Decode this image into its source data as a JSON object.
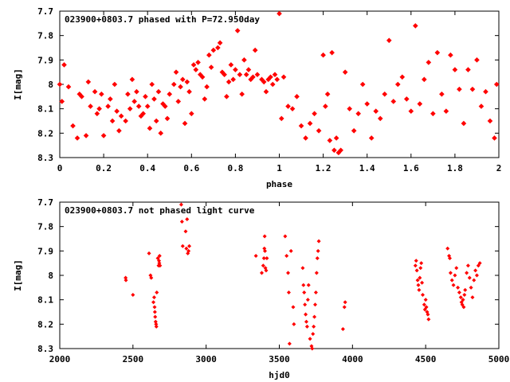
{
  "chart_data": [
    {
      "type": "scatter",
      "title": "023900+0803.7 phased with P=72.950day",
      "xlabel": "phase",
      "ylabel": "I[mag]",
      "xlim": [
        0,
        2
      ],
      "ylim": [
        7.7,
        8.3
      ],
      "y_inverted": true,
      "x_ticks": [
        "0",
        "0.2",
        "0.4",
        "0.6",
        "0.8",
        "1",
        "1.2",
        "1.4",
        "1.6",
        "1.8",
        "2"
      ],
      "y_ticks": [
        "7.7",
        "7.8",
        "7.9",
        "8",
        "8.1",
        "8.2",
        "8.3"
      ],
      "marker_color": "#ff0000",
      "series": [
        {
          "x": [
            0.0,
            0.01,
            0.02,
            0.04,
            0.06,
            0.08,
            0.09,
            0.1,
            0.12,
            0.13,
            0.14,
            0.16,
            0.17,
            0.18,
            0.19,
            0.2,
            0.22,
            0.23,
            0.24,
            0.25,
            0.26,
            0.27,
            0.28,
            0.3,
            0.31,
            0.32,
            0.33,
            0.34,
            0.35,
            0.36,
            0.37,
            0.38,
            0.39,
            0.4,
            0.41,
            0.42,
            0.43,
            0.44,
            0.45,
            0.46,
            0.47,
            0.48,
            0.49,
            0.5,
            0.52,
            0.53,
            0.54,
            0.55,
            0.56,
            0.57,
            0.58,
            0.59,
            0.6,
            0.61,
            0.62,
            0.63,
            0.64,
            0.65,
            0.66,
            0.67,
            0.68,
            0.69,
            0.7,
            0.72,
            0.73,
            0.74,
            0.75,
            0.76,
            0.77,
            0.78,
            0.79,
            0.8,
            0.81,
            0.82,
            0.83,
            0.84,
            0.85,
            0.86,
            0.87,
            0.88,
            0.89,
            0.9,
            0.92,
            0.93,
            0.94,
            0.95,
            0.96,
            0.97,
            0.98,
            0.99,
            1.0,
            1.01,
            1.02,
            1.04,
            1.06,
            1.08,
            1.1,
            1.12,
            1.14,
            1.16,
            1.18,
            1.2,
            1.21,
            1.22,
            1.23,
            1.24,
            1.25,
            1.26,
            1.27,
            1.28,
            1.3,
            1.32,
            1.34,
            1.36,
            1.38,
            1.4,
            1.42,
            1.44,
            1.46,
            1.48,
            1.5,
            1.52,
            1.54,
            1.56,
            1.58,
            1.6,
            1.62,
            1.64,
            1.66,
            1.68,
            1.7,
            1.72,
            1.74,
            1.76,
            1.78,
            1.8,
            1.82,
            1.84,
            1.86,
            1.88,
            1.9,
            1.92,
            1.94,
            1.96,
            1.98,
            1.99
          ],
          "y": [
            8.0,
            8.07,
            7.92,
            8.01,
            8.17,
            8.22,
            8.04,
            8.05,
            8.21,
            7.99,
            8.09,
            8.03,
            8.12,
            8.1,
            8.04,
            8.21,
            8.09,
            8.06,
            8.15,
            8.0,
            8.11,
            8.19,
            8.13,
            8.15,
            8.04,
            8.1,
            7.98,
            8.07,
            8.03,
            8.09,
            8.13,
            8.12,
            8.05,
            8.09,
            8.18,
            8.0,
            8.06,
            8.15,
            8.03,
            8.2,
            8.08,
            8.09,
            8.14,
            8.04,
            8.0,
            7.95,
            8.07,
            8.01,
            7.98,
            8.16,
            7.99,
            8.03,
            8.12,
            7.92,
            7.94,
            7.91,
            7.96,
            7.97,
            8.06,
            8.01,
            7.88,
            7.93,
            7.86,
            7.85,
            7.83,
            7.95,
            7.96,
            8.05,
            7.99,
            7.92,
            7.98,
            7.94,
            7.78,
            7.96,
            8.04,
            7.9,
            7.96,
            7.94,
            7.98,
            7.97,
            7.86,
            7.96,
            7.98,
            7.99,
            8.03,
            7.98,
            7.97,
            8.0,
            7.96,
            7.98,
            7.71,
            8.14,
            7.97,
            8.09,
            8.1,
            8.05,
            8.17,
            8.22,
            8.16,
            8.12,
            8.19,
            7.88,
            8.09,
            8.04,
            8.23,
            7.87,
            8.27,
            8.22,
            8.28,
            8.27,
            7.95,
            8.1,
            8.19,
            8.12,
            8.0,
            8.08,
            8.22,
            8.11,
            8.14,
            8.04,
            7.82,
            8.07,
            8.0,
            7.97,
            8.06,
            8.11,
            7.76,
            8.08,
            7.98,
            7.91,
            8.12,
            7.87,
            8.04,
            8.11,
            7.88,
            7.94,
            8.02,
            8.16,
            7.94,
            8.02,
            7.9,
            8.09,
            8.03,
            8.15,
            8.22,
            8.0
          ]
        }
      ]
    },
    {
      "type": "scatter",
      "title": "023900+0803.7 not phased light curve",
      "xlabel": "hjd0",
      "ylabel": "I[mag]",
      "xlim": [
        2000,
        5000
      ],
      "ylim": [
        7.7,
        8.3
      ],
      "y_inverted": true,
      "x_ticks": [
        "2000",
        "2500",
        "3000",
        "3500",
        "4000",
        "4500",
        "5000"
      ],
      "y_ticks": [
        "7.7",
        "7.8",
        "7.9",
        "8",
        "8.1",
        "8.2",
        "8.3"
      ],
      "marker_color": "#ff0000",
      "series": [
        {
          "x": [
            2450,
            2452,
            2500,
            2610,
            2620,
            2625,
            2640,
            2645,
            2648,
            2650,
            2652,
            2655,
            2658,
            2660,
            2663,
            2670,
            2675,
            2678,
            2680,
            2682,
            2685,
            2830,
            2835,
            2840,
            2860,
            2865,
            2870,
            2875,
            2880,
            2885,
            3340,
            3380,
            3390,
            3395,
            3398,
            3400,
            3402,
            3405,
            3410,
            3415,
            3540,
            3550,
            3560,
            3565,
            3570,
            3580,
            3595,
            3600,
            3660,
            3665,
            3670,
            3675,
            3680,
            3685,
            3690,
            3695,
            3700,
            3710,
            3720,
            3725,
            3730,
            3735,
            3740,
            3745,
            3750,
            3755,
            3760,
            3765,
            3770,
            3935,
            3945,
            3950,
            4430,
            4435,
            4440,
            4445,
            4450,
            4455,
            4460,
            4465,
            4470,
            4475,
            4480,
            4490,
            4495,
            4500,
            4505,
            4510,
            4515,
            4520,
            4650,
            4660,
            4665,
            4670,
            4680,
            4690,
            4700,
            4710,
            4720,
            4730,
            4740,
            4745,
            4750,
            4755,
            4760,
            4765,
            4770,
            4780,
            4790,
            4800,
            4810,
            4820,
            4830,
            4840,
            4850,
            4860,
            4870
          ],
          "y": [
            8.01,
            8.02,
            8.08,
            7.91,
            8.0,
            8.01,
            8.11,
            8.09,
            8.13,
            8.15,
            8.17,
            8.19,
            8.2,
            8.21,
            8.07,
            7.93,
            7.96,
            7.94,
            7.95,
            7.92,
            7.96,
            7.71,
            7.78,
            7.88,
            7.82,
            7.89,
            7.77,
            7.91,
            7.9,
            7.88,
            7.92,
            7.99,
            7.96,
            7.93,
            7.89,
            7.84,
            7.9,
            7.97,
            7.98,
            7.93,
            7.84,
            7.92,
            7.99,
            8.07,
            8.28,
            7.9,
            8.13,
            8.2,
            7.97,
            8.04,
            8.07,
            8.12,
            8.16,
            8.19,
            8.21,
            8.1,
            8.04,
            8.26,
            8.29,
            8.3,
            8.24,
            8.21,
            8.17,
            8.12,
            8.07,
            7.99,
            7.93,
            7.9,
            7.86,
            8.22,
            8.13,
            8.11,
            7.96,
            7.94,
            7.98,
            8.02,
            8.04,
            8.06,
            8.01,
            7.97,
            7.95,
            8.03,
            8.08,
            8.12,
            8.14,
            8.1,
            8.13,
            8.15,
            8.16,
            8.18,
            7.89,
            7.92,
            7.93,
            7.99,
            8.02,
            8.04,
            8.0,
            7.97,
            8.05,
            8.07,
            8.09,
            8.11,
            8.12,
            8.1,
            8.13,
            8.08,
            8.06,
            7.99,
            7.96,
            8.01,
            8.05,
            8.09,
            8.02,
            7.98,
            8.0,
            7.96,
            7.95
          ]
        }
      ]
    }
  ]
}
